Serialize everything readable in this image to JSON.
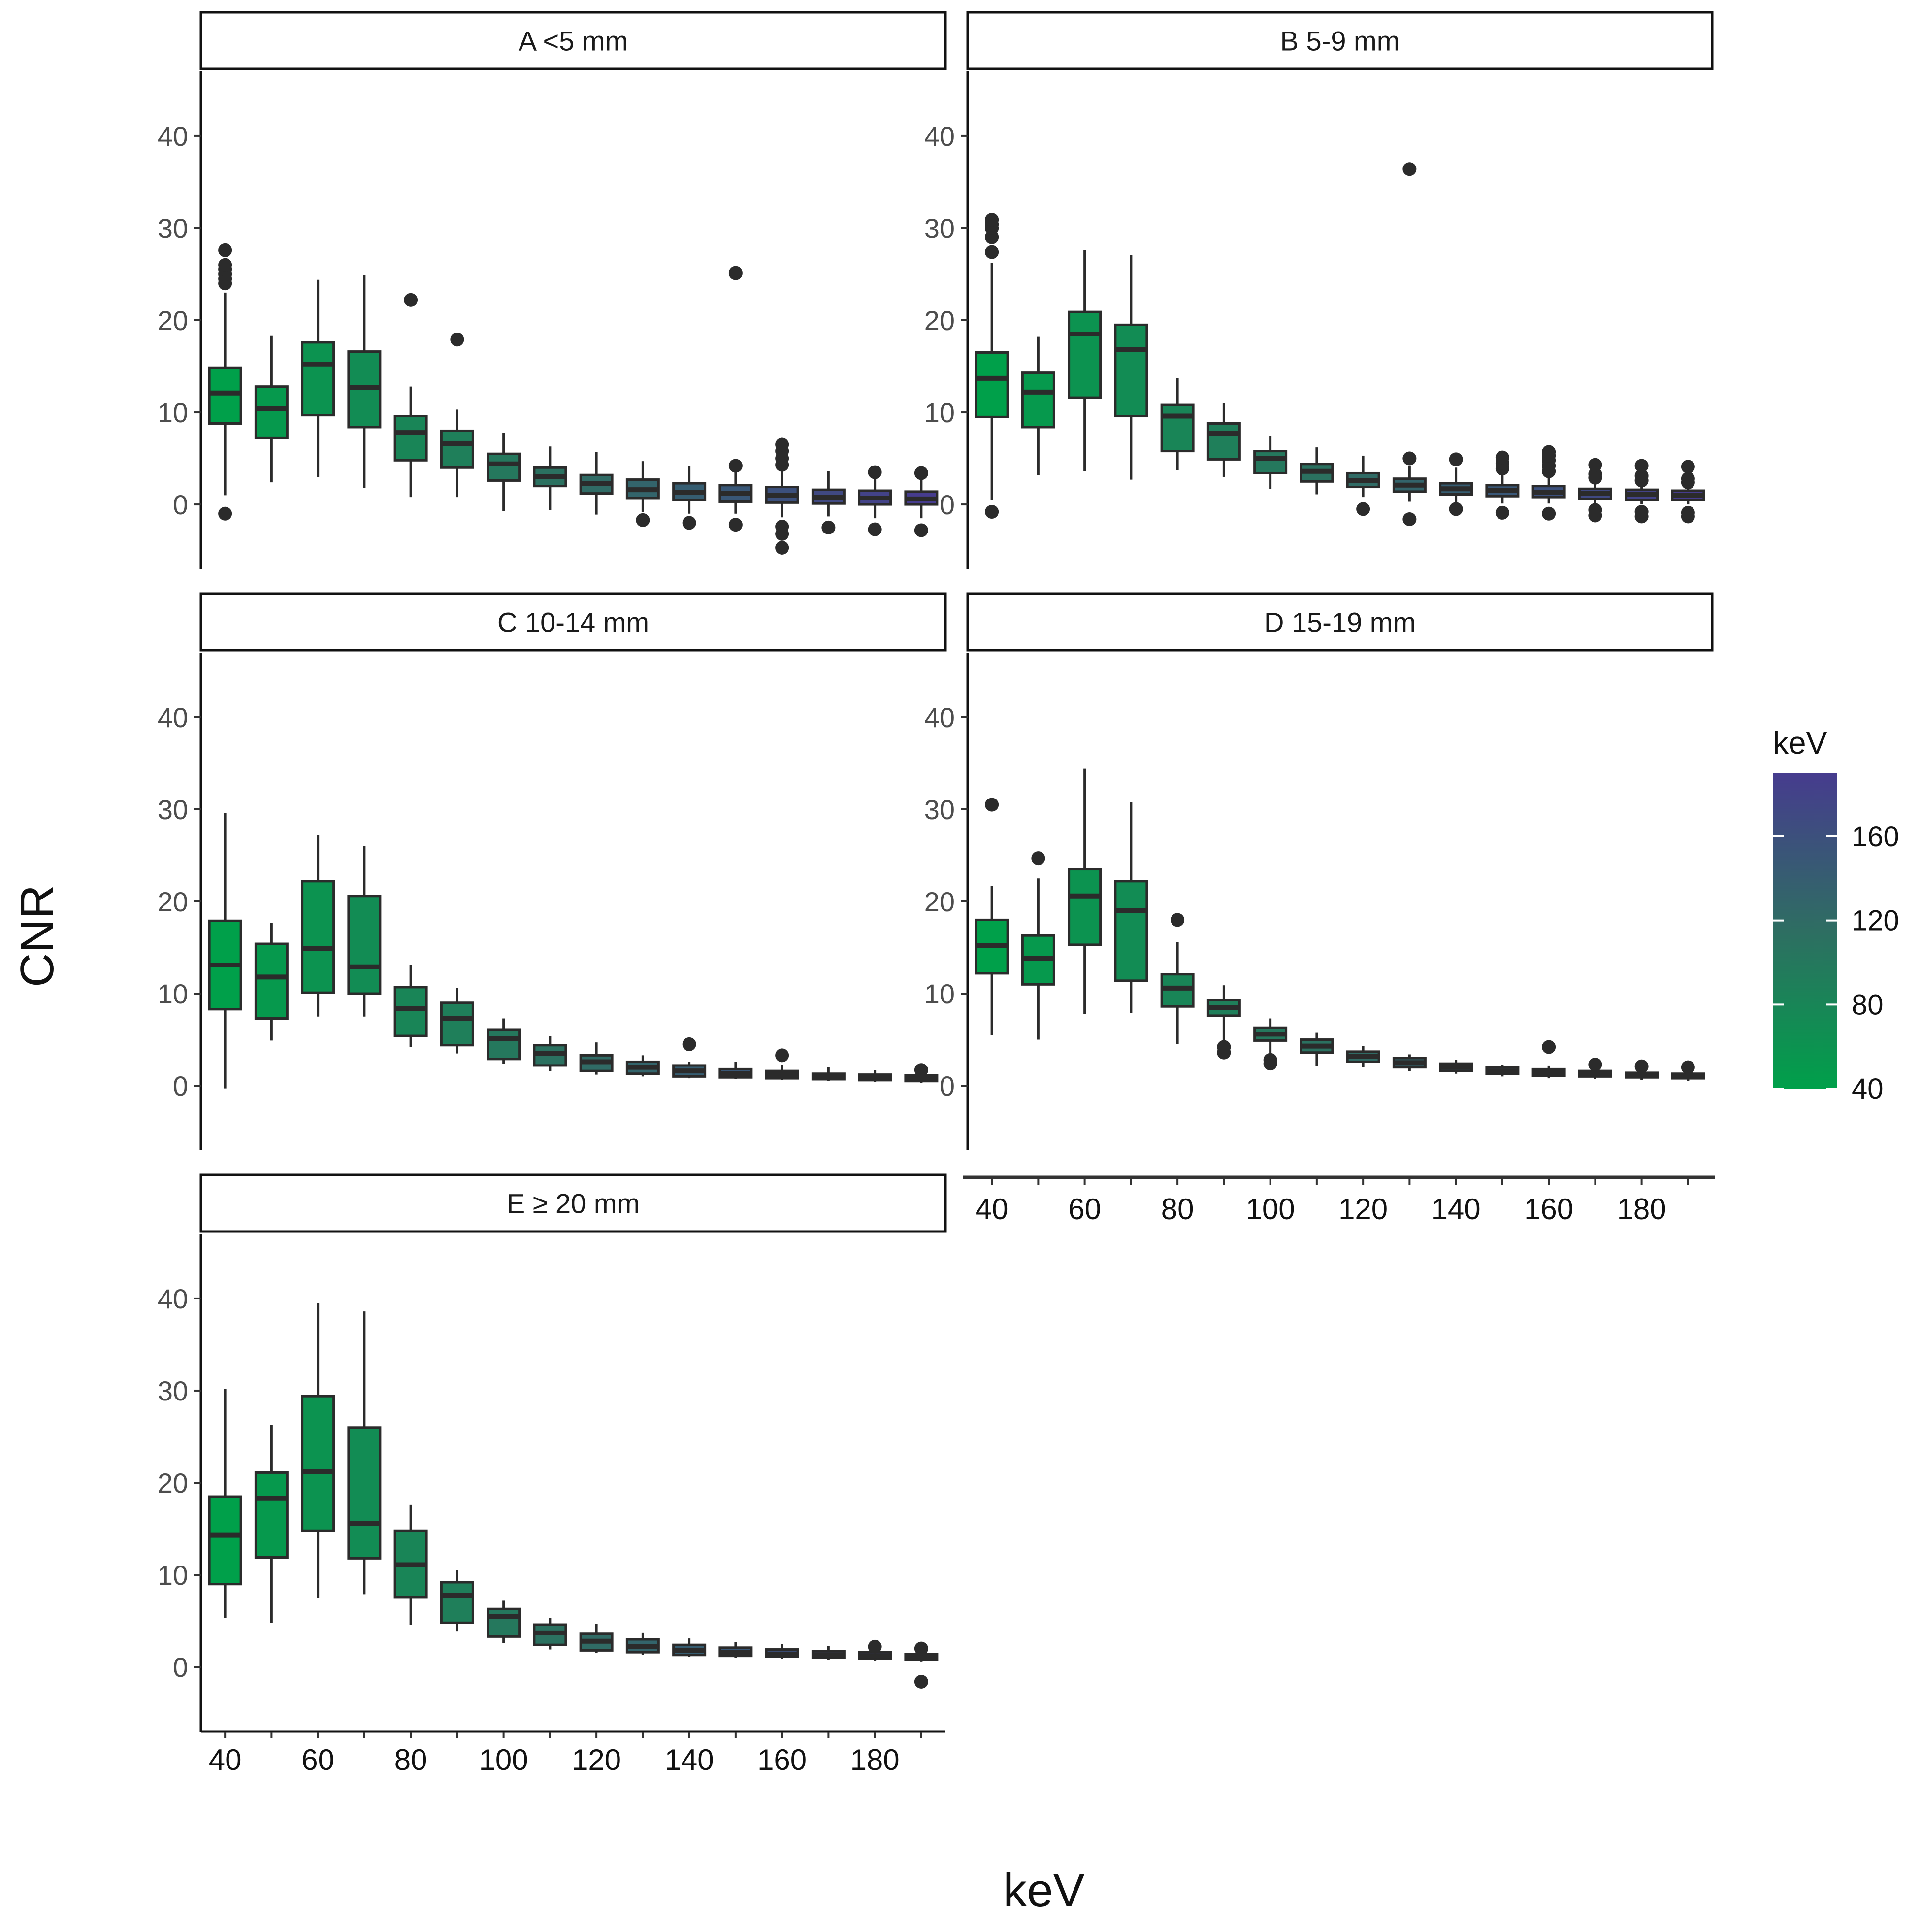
{
  "chart_data": {
    "type": "boxplot",
    "layout": "faceted small multiples, 3 rows x 2 columns, 5 panels",
    "xlabel": "keV",
    "ylabel": "CNR",
    "ylim": [
      -7,
      47
    ],
    "yticks": [
      0,
      10,
      20,
      30,
      40
    ],
    "x_categories": [
      40,
      50,
      60,
      70,
      80,
      90,
      100,
      110,
      120,
      130,
      140,
      150,
      160,
      170,
      180,
      190
    ],
    "xticks": [
      40,
      60,
      80,
      100,
      120,
      140,
      160,
      180
    ],
    "legend": {
      "title": "keV",
      "type": "continuous colorbar",
      "ticks": [
        40,
        80,
        120,
        160
      ],
      "range": [
        40,
        190
      ],
      "color_low": "#00A04A",
      "color_mid": "#2E6E62",
      "color_high": "#463C8E",
      "placement": "right"
    },
    "panels": [
      {
        "label": "A <5 mm",
        "boxes": [
          {
            "kev": 40,
            "lo": 1,
            "q1": 8.8,
            "med": 12.1,
            "q3": 14.8,
            "hi": 23,
            "out": [
              -1,
              24,
              24.5,
              25,
              25.5,
              26,
              27.6
            ]
          },
          {
            "kev": 50,
            "lo": 2.4,
            "q1": 7.2,
            "med": 10.4,
            "q3": 12.8,
            "hi": 18.3,
            "out": []
          },
          {
            "kev": 60,
            "lo": 3,
            "q1": 9.7,
            "med": 15.2,
            "q3": 17.6,
            "hi": 24.4,
            "out": []
          },
          {
            "kev": 70,
            "lo": 1.8,
            "q1": 8.4,
            "med": 12.7,
            "q3": 16.6,
            "hi": 24.9,
            "out": []
          },
          {
            "kev": 80,
            "lo": 0.8,
            "q1": 4.8,
            "med": 7.8,
            "q3": 9.6,
            "hi": 12.8,
            "out": [
              22.2
            ]
          },
          {
            "kev": 90,
            "lo": 0.8,
            "q1": 4,
            "med": 6.6,
            "q3": 8,
            "hi": 10.3,
            "out": [
              17.9
            ]
          },
          {
            "kev": 100,
            "lo": -0.7,
            "q1": 2.6,
            "med": 4.4,
            "q3": 5.5,
            "hi": 7.8,
            "out": []
          },
          {
            "kev": 110,
            "lo": -0.6,
            "q1": 2,
            "med": 3,
            "q3": 4,
            "hi": 6.3,
            "out": []
          },
          {
            "kev": 120,
            "lo": -1.1,
            "q1": 1.2,
            "med": 2.3,
            "q3": 3.2,
            "hi": 5.7,
            "out": []
          },
          {
            "kev": 130,
            "lo": -0.8,
            "q1": 0.7,
            "med": 1.6,
            "q3": 2.7,
            "hi": 4.7,
            "out": [
              -1.7
            ]
          },
          {
            "kev": 140,
            "lo": -1,
            "q1": 0.5,
            "med": 1.3,
            "q3": 2.3,
            "hi": 4.2,
            "out": [
              -2
            ]
          },
          {
            "kev": 150,
            "lo": -1,
            "q1": 0.3,
            "med": 1.2,
            "q3": 2.1,
            "hi": 4,
            "out": [
              -2.2,
              4.2,
              25.1
            ]
          },
          {
            "kev": 160,
            "lo": -1.4,
            "q1": 0.2,
            "med": 1,
            "q3": 1.9,
            "hi": 4,
            "out": [
              -4.7,
              -3.2,
              -2.4,
              4.3,
              5,
              5.8,
              6.5
            ]
          },
          {
            "kev": 170,
            "lo": -1.3,
            "q1": 0.1,
            "med": 0.8,
            "q3": 1.6,
            "hi": 3.6,
            "out": [
              -2.5
            ]
          },
          {
            "kev": 180,
            "lo": -1.5,
            "q1": 0,
            "med": 0.7,
            "q3": 1.5,
            "hi": 3.3,
            "out": [
              -2.7,
              3.5
            ]
          },
          {
            "kev": 190,
            "lo": -1.5,
            "q1": 0,
            "med": 0.6,
            "q3": 1.4,
            "hi": 3.1,
            "out": [
              -2.8,
              3.4
            ]
          }
        ]
      },
      {
        "label": "B 5-9 mm",
        "boxes": [
          {
            "kev": 40,
            "lo": 0.5,
            "q1": 9.5,
            "med": 13.7,
            "q3": 16.5,
            "hi": 26.2,
            "out": [
              -0.8,
              27.4,
              29,
              30,
              30.4,
              30.9
            ]
          },
          {
            "kev": 50,
            "lo": 3.2,
            "q1": 8.4,
            "med": 12.2,
            "q3": 14.3,
            "hi": 18.2,
            "out": []
          },
          {
            "kev": 60,
            "lo": 3.6,
            "q1": 11.6,
            "med": 18.5,
            "q3": 20.9,
            "hi": 27.6,
            "out": []
          },
          {
            "kev": 70,
            "lo": 2.7,
            "q1": 9.6,
            "med": 16.8,
            "q3": 19.5,
            "hi": 27.1,
            "out": []
          },
          {
            "kev": 80,
            "lo": 3.7,
            "q1": 5.8,
            "med": 9.6,
            "q3": 10.8,
            "hi": 13.7,
            "out": []
          },
          {
            "kev": 90,
            "lo": 3,
            "q1": 4.9,
            "med": 7.7,
            "q3": 8.8,
            "hi": 11,
            "out": []
          },
          {
            "kev": 100,
            "lo": 1.7,
            "q1": 3.4,
            "med": 5,
            "q3": 5.8,
            "hi": 7.4,
            "out": []
          },
          {
            "kev": 110,
            "lo": 1.1,
            "q1": 2.5,
            "med": 3.6,
            "q3": 4.4,
            "hi": 6.2,
            "out": []
          },
          {
            "kev": 120,
            "lo": 0.8,
            "q1": 1.9,
            "med": 2.6,
            "q3": 3.4,
            "hi": 5.3,
            "out": [
              -0.5
            ]
          },
          {
            "kev": 130,
            "lo": 0.3,
            "q1": 1.4,
            "med": 2.1,
            "q3": 2.8,
            "hi": 4.2,
            "out": [
              -1.6,
              5,
              36.4
            ]
          },
          {
            "kev": 140,
            "lo": 0.2,
            "q1": 1.1,
            "med": 1.7,
            "q3": 2.3,
            "hi": 4,
            "out": [
              -0.5,
              4.9
            ]
          },
          {
            "kev": 150,
            "lo": 0.1,
            "q1": 0.9,
            "med": 1.5,
            "q3": 2.1,
            "hi": 3.6,
            "out": [
              -0.9,
              3.9,
              4.5,
              5.1
            ]
          },
          {
            "kev": 160,
            "lo": 0.1,
            "q1": 0.8,
            "med": 1.3,
            "q3": 2,
            "hi": 3.3,
            "out": [
              -1,
              3.6,
              4.2,
              4.8,
              5.3,
              5.7
            ]
          },
          {
            "kev": 170,
            "lo": 0,
            "q1": 0.6,
            "med": 1.2,
            "q3": 1.7,
            "hi": 2.6,
            "out": [
              -1.2,
              -0.6,
              2.9,
              3.3,
              4.3
            ]
          },
          {
            "kev": 180,
            "lo": 0,
            "q1": 0.5,
            "med": 1.1,
            "q3": 1.6,
            "hi": 2.4,
            "out": [
              -1.3,
              -0.8,
              2.6,
              3.1,
              4.2
            ]
          },
          {
            "kev": 190,
            "lo": 0,
            "q1": 0.5,
            "med": 1,
            "q3": 1.5,
            "hi": 2.2,
            "out": [
              -1.3,
              -0.9,
              2.4,
              2.8,
              4.1
            ]
          }
        ]
      },
      {
        "label": "C 10-14 mm",
        "boxes": [
          {
            "kev": 40,
            "lo": -0.3,
            "q1": 8.3,
            "med": 13.1,
            "q3": 17.9,
            "hi": 29.6,
            "out": []
          },
          {
            "kev": 50,
            "lo": 4.9,
            "q1": 7.3,
            "med": 11.8,
            "q3": 15.4,
            "hi": 17.7,
            "out": []
          },
          {
            "kev": 60,
            "lo": 7.5,
            "q1": 10.1,
            "med": 14.9,
            "q3": 22.2,
            "hi": 27.2,
            "out": []
          },
          {
            "kev": 70,
            "lo": 7.5,
            "q1": 10,
            "med": 12.9,
            "q3": 20.6,
            "hi": 26,
            "out": []
          },
          {
            "kev": 80,
            "lo": 4.2,
            "q1": 5.4,
            "med": 8.4,
            "q3": 10.7,
            "hi": 13.1,
            "out": []
          },
          {
            "kev": 90,
            "lo": 3.5,
            "q1": 4.4,
            "med": 7.3,
            "q3": 9,
            "hi": 10.6,
            "out": []
          },
          {
            "kev": 100,
            "lo": 2.4,
            "q1": 2.9,
            "med": 5.1,
            "q3": 6.1,
            "hi": 7.3,
            "out": []
          },
          {
            "kev": 110,
            "lo": 1.6,
            "q1": 2.2,
            "med": 3.5,
            "q3": 4.4,
            "hi": 5.4,
            "out": []
          },
          {
            "kev": 120,
            "lo": 1.2,
            "q1": 1.6,
            "med": 2.6,
            "q3": 3.3,
            "hi": 4.7,
            "out": []
          },
          {
            "kev": 130,
            "lo": 1,
            "q1": 1.3,
            "med": 2,
            "q3": 2.6,
            "hi": 3.3,
            "out": []
          },
          {
            "kev": 140,
            "lo": 0.8,
            "q1": 1,
            "med": 1.6,
            "q3": 2.2,
            "hi": 2.6,
            "out": [
              4.5
            ]
          },
          {
            "kev": 150,
            "lo": 0.7,
            "q1": 0.9,
            "med": 1.3,
            "q3": 1.8,
            "hi": 2.6,
            "out": []
          },
          {
            "kev": 160,
            "lo": 0.6,
            "q1": 0.8,
            "med": 1.2,
            "q3": 1.6,
            "hi": 2.3,
            "out": [
              3.3
            ]
          },
          {
            "kev": 170,
            "lo": 0.5,
            "q1": 0.7,
            "med": 1,
            "q3": 1.3,
            "hi": 2,
            "out": []
          },
          {
            "kev": 180,
            "lo": 0.4,
            "q1": 0.6,
            "med": 0.9,
            "q3": 1.2,
            "hi": 1.7,
            "out": []
          },
          {
            "kev": 190,
            "lo": 0.3,
            "q1": 0.5,
            "med": 0.8,
            "q3": 1.1,
            "hi": 1.5,
            "out": [
              1.7
            ]
          }
        ]
      },
      {
        "label": "D 15-19 mm",
        "boxes": [
          {
            "kev": 40,
            "lo": 5.5,
            "q1": 12.2,
            "med": 15.2,
            "q3": 18,
            "hi": 21.7,
            "out": [
              30.5
            ]
          },
          {
            "kev": 50,
            "lo": 5,
            "q1": 11,
            "med": 13.8,
            "q3": 16.3,
            "hi": 22.5,
            "out": [
              24.7
            ]
          },
          {
            "kev": 60,
            "lo": 7.8,
            "q1": 15.3,
            "med": 20.6,
            "q3": 23.5,
            "hi": 34.4,
            "out": []
          },
          {
            "kev": 70,
            "lo": 7.9,
            "q1": 11.4,
            "med": 19,
            "q3": 22.2,
            "hi": 30.8,
            "out": []
          },
          {
            "kev": 80,
            "lo": 4.5,
            "q1": 8.6,
            "med": 10.6,
            "q3": 12.1,
            "hi": 15.6,
            "out": [
              18
            ]
          },
          {
            "kev": 90,
            "lo": 4.8,
            "q1": 7.6,
            "med": 8.5,
            "q3": 9.3,
            "hi": 10.9,
            "out": [
              3.6,
              4.2
            ]
          },
          {
            "kev": 100,
            "lo": 3.4,
            "q1": 4.9,
            "med": 5.6,
            "q3": 6.3,
            "hi": 7.3,
            "out": [
              2.4,
              2.8
            ]
          },
          {
            "kev": 110,
            "lo": 2.1,
            "q1": 3.6,
            "med": 4.3,
            "q3": 5,
            "hi": 5.8,
            "out": []
          },
          {
            "kev": 120,
            "lo": 2,
            "q1": 2.6,
            "med": 3.2,
            "q3": 3.7,
            "hi": 4.3,
            "out": []
          },
          {
            "kev": 130,
            "lo": 1.6,
            "q1": 2,
            "med": 2.5,
            "q3": 3,
            "hi": 3.4,
            "out": []
          },
          {
            "kev": 140,
            "lo": 1.3,
            "q1": 1.6,
            "med": 2,
            "q3": 2.4,
            "hi": 2.8,
            "out": []
          },
          {
            "kev": 150,
            "lo": 1,
            "q1": 1.3,
            "med": 1.6,
            "q3": 2,
            "hi": 2.3,
            "out": []
          },
          {
            "kev": 160,
            "lo": 0.8,
            "q1": 1.1,
            "med": 1.4,
            "q3": 1.8,
            "hi": 2.2,
            "out": [
              4.2
            ]
          },
          {
            "kev": 170,
            "lo": 0.7,
            "q1": 1,
            "med": 1.3,
            "q3": 1.6,
            "hi": 1.9,
            "out": [
              2.3
            ]
          },
          {
            "kev": 180,
            "lo": 0.6,
            "q1": 0.9,
            "med": 1.2,
            "q3": 1.4,
            "hi": 1.8,
            "out": [
              2.1
            ]
          },
          {
            "kev": 190,
            "lo": 0.5,
            "q1": 0.8,
            "med": 1,
            "q3": 1.3,
            "hi": 1.6,
            "out": [
              2
            ]
          }
        ]
      },
      {
        "label": "E ≥ 20 mm",
        "boxes": [
          {
            "kev": 40,
            "lo": 5.3,
            "q1": 9,
            "med": 14.3,
            "q3": 18.5,
            "hi": 30.2,
            "out": []
          },
          {
            "kev": 50,
            "lo": 4.8,
            "q1": 11.9,
            "med": 18.3,
            "q3": 21.1,
            "hi": 26.3,
            "out": []
          },
          {
            "kev": 60,
            "lo": 7.5,
            "q1": 14.8,
            "med": 21.2,
            "q3": 29.4,
            "hi": 39.5,
            "out": []
          },
          {
            "kev": 70,
            "lo": 7.9,
            "q1": 11.8,
            "med": 15.6,
            "q3": 26,
            "hi": 38.6,
            "out": []
          },
          {
            "kev": 80,
            "lo": 4.6,
            "q1": 7.6,
            "med": 11.1,
            "q3": 14.8,
            "hi": 17.6,
            "out": []
          },
          {
            "kev": 90,
            "lo": 3.9,
            "q1": 4.8,
            "med": 7.8,
            "q3": 9.2,
            "hi": 10.5,
            "out": []
          },
          {
            "kev": 100,
            "lo": 2.6,
            "q1": 3.3,
            "med": 5.5,
            "q3": 6.3,
            "hi": 7.2,
            "out": []
          },
          {
            "kev": 110,
            "lo": 1.9,
            "q1": 2.4,
            "med": 3.7,
            "q3": 4.6,
            "hi": 5.3,
            "out": []
          },
          {
            "kev": 120,
            "lo": 1.5,
            "q1": 1.8,
            "med": 2.8,
            "q3": 3.6,
            "hi": 4.7,
            "out": []
          },
          {
            "kev": 130,
            "lo": 1.3,
            "q1": 1.6,
            "med": 2.2,
            "q3": 3,
            "hi": 3.7,
            "out": []
          },
          {
            "kev": 140,
            "lo": 1.1,
            "q1": 1.3,
            "med": 1.8,
            "q3": 2.4,
            "hi": 3.1,
            "out": []
          },
          {
            "kev": 150,
            "lo": 1,
            "q1": 1.2,
            "med": 1.6,
            "q3": 2.1,
            "hi": 2.7,
            "out": []
          },
          {
            "kev": 160,
            "lo": 0.9,
            "q1": 1.1,
            "med": 1.4,
            "q3": 1.9,
            "hi": 2.5,
            "out": []
          },
          {
            "kev": 170,
            "lo": 0.8,
            "q1": 1,
            "med": 1.3,
            "q3": 1.7,
            "hi": 2.3,
            "out": []
          },
          {
            "kev": 180,
            "lo": 0.7,
            "q1": 0.9,
            "med": 1.2,
            "q3": 1.6,
            "hi": 2,
            "out": [
              2.2
            ]
          },
          {
            "kev": 190,
            "lo": 0.6,
            "q1": 0.8,
            "med": 1.1,
            "q3": 1.4,
            "hi": 1.8,
            "out": [
              -1.6,
              2
            ]
          }
        ]
      }
    ]
  }
}
